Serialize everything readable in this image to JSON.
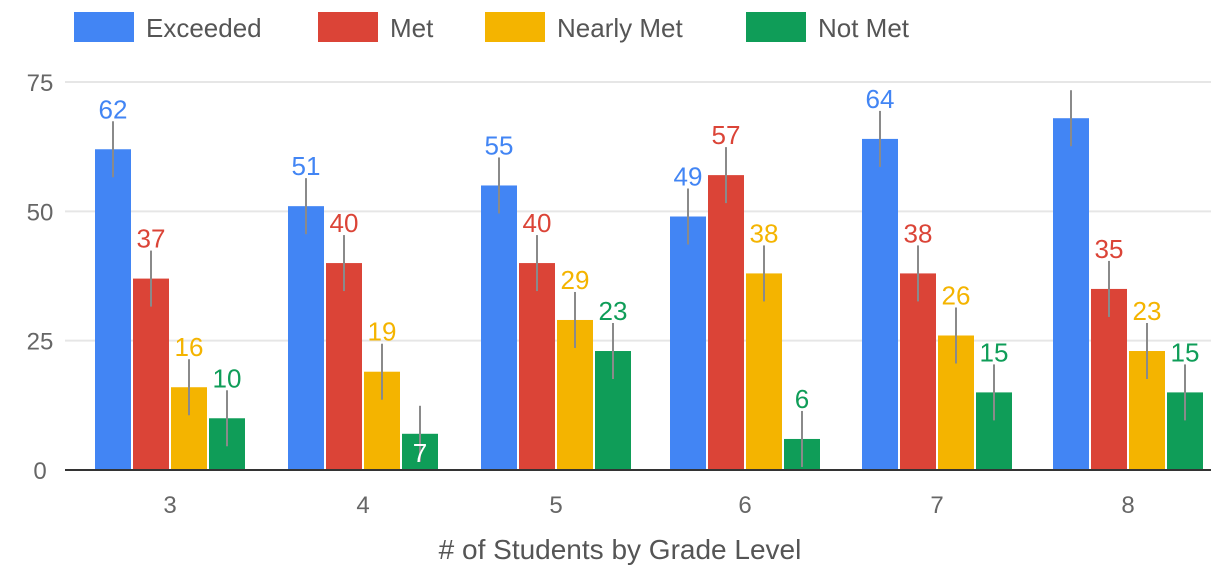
{
  "chart_data": {
    "type": "bar",
    "xlabel": "# of Students by Grade Level",
    "ylabel": "",
    "ylim": [
      0,
      75
    ],
    "yticks": [
      0,
      25,
      50,
      75
    ],
    "grid": true,
    "legend_position": "top-left",
    "categories": [
      "3",
      "4",
      "5",
      "6",
      "7",
      "8"
    ],
    "series": [
      {
        "name": "Exceeded",
        "color": "#4285f4",
        "values": [
          62,
          51,
          55,
          49,
          64,
          68
        ],
        "labels": [
          "62",
          "51",
          "55",
          "49",
          "64",
          ""
        ]
      },
      {
        "name": "Met",
        "color": "#db4437",
        "values": [
          37,
          40,
          40,
          57,
          38,
          35
        ],
        "labels": [
          "37",
          "40",
          "40",
          "57",
          "38",
          "35"
        ]
      },
      {
        "name": "Nearly Met",
        "color": "#f4b400",
        "values": [
          16,
          19,
          29,
          38,
          26,
          23
        ],
        "labels": [
          "16",
          "19",
          "29",
          "38",
          "26",
          "23"
        ]
      },
      {
        "name": "Not Met",
        "color": "#0f9d58",
        "values": [
          10,
          7,
          23,
          6,
          15,
          15
        ],
        "labels": [
          "10",
          "7",
          "23",
          "6",
          "15",
          "15"
        ]
      }
    ],
    "inside_labels": [
      {
        "series": 3,
        "category": 1
      }
    ]
  }
}
